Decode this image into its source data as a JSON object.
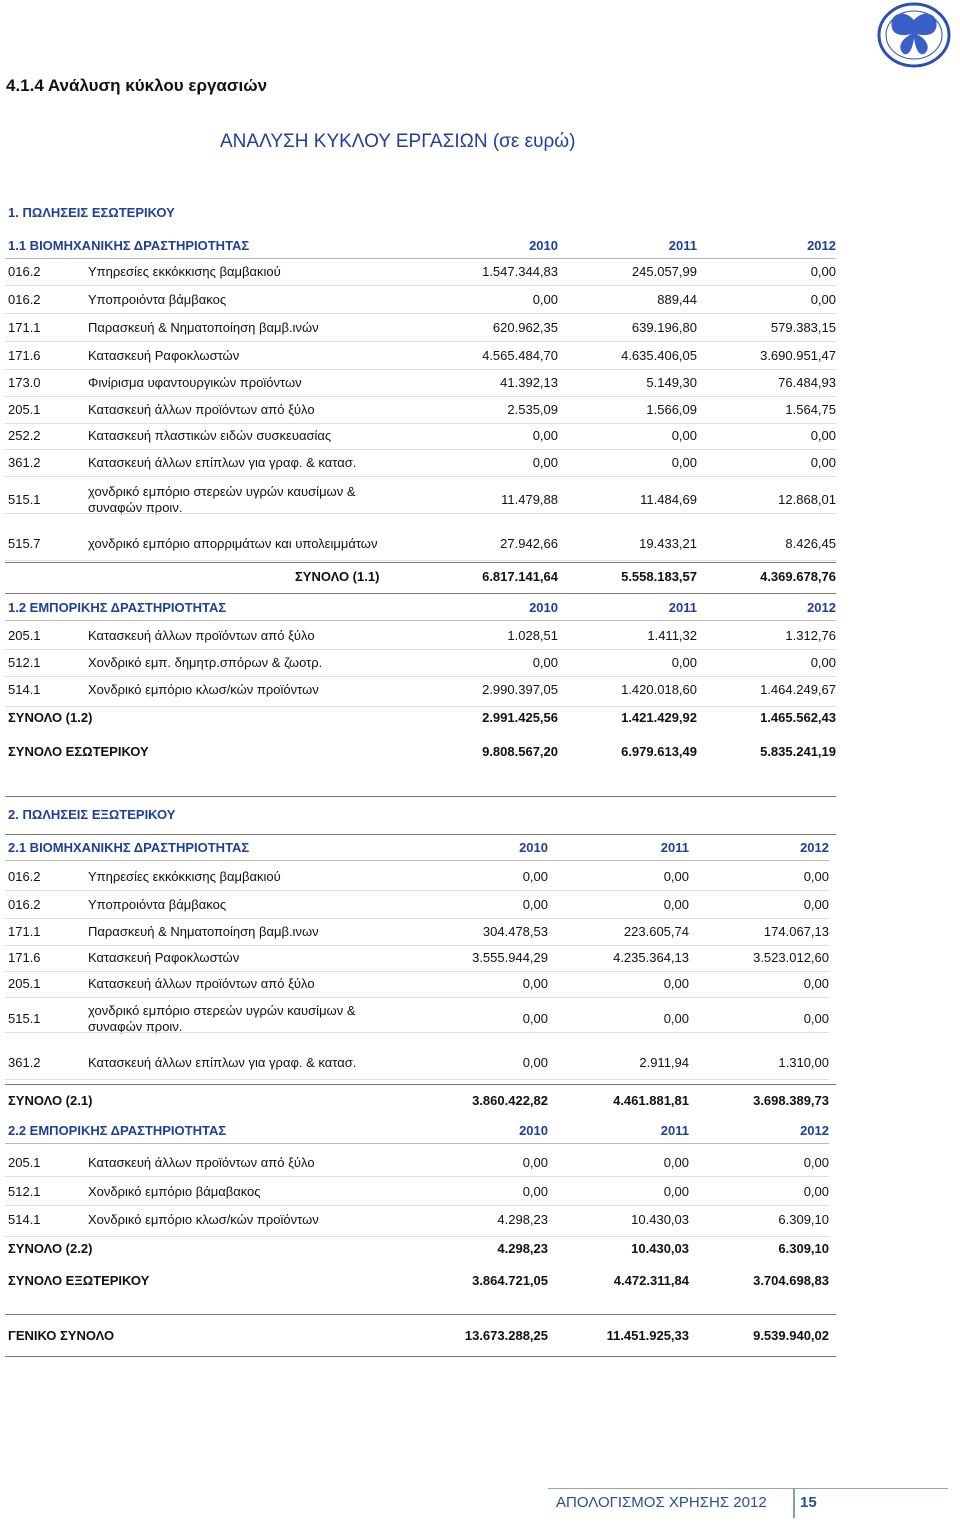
{
  "header": {
    "section": "4.1.4 Ανάλυση κύκλου εργασιών",
    "title": "ΑΝΑΛΥΣΗ ΚΥΚΛΟΥ ΕΡΓΑΣΙΩΝ (σε ευρώ)"
  },
  "domestic": {
    "heading": "1. ΠΩΛΗΣΕΙΣ ΕΣΩΤΕΡΙΚΟΥ",
    "industrial": {
      "heading": "1.1 ΒΙΟΜΗΧΑΝΙΚΗΣ ΔΡΑΣΤΗΡΙΟΤΗΤΑΣ",
      "years": [
        "2010",
        "2011",
        "2012"
      ],
      "rows": [
        {
          "code": "016.2",
          "name": "Υπηρεσίες εκκόκκισης βαμβακιού",
          "values": [
            "1.547.344,83",
            "245.057,99",
            "0,00"
          ]
        },
        {
          "code": "016.2",
          "name": "Υποπροιόντα βάμβακος",
          "values": [
            "0,00",
            "889,44",
            "0,00"
          ]
        },
        {
          "code": "171.1",
          "name": "Παρασκευή & Νηματοποίηση βαμβ.ινών",
          "values": [
            "620.962,35",
            "639.196,80",
            "579.383,15"
          ]
        },
        {
          "code": "171.6",
          "name": "Κατασκευή Ραφοκλωστών",
          "values": [
            "4.565.484,70",
            "4.635.406,05",
            "3.690.951,47"
          ]
        },
        {
          "code": "173.0",
          "name": "Φινίρισμα υφαντουργικών προϊόντων",
          "values": [
            "41.392,13",
            "5.149,30",
            "76.484,93"
          ]
        },
        {
          "code": "205.1",
          "name": "Κατασκευή άλλων προϊόντων από ξύλο",
          "values": [
            "2.535,09",
            "1.566,09",
            "1.564,75"
          ]
        },
        {
          "code": "252.2",
          "name": "Κατασκευή πλαστικών ειδών συσκευασίας",
          "values": [
            "0,00",
            "0,00",
            "0,00"
          ]
        },
        {
          "code": "361.2",
          "name": "Κατασκευή άλλων επίπλων για γραφ. & κατασ.",
          "values": [
            "0,00",
            "0,00",
            "0,00"
          ]
        },
        {
          "code": "515.1",
          "name": "χονδρικό εμπόριο στερεών υγρών καυσίμων & συναφών προιν.",
          "values": [
            "11.479,88",
            "11.484,69",
            "12.868,01"
          ]
        },
        {
          "code": "515.7",
          "name": "χονδρικό εμπόριο απορριμάτων και υπολειμμάτων",
          "values": [
            "27.942,66",
            "19.433,21",
            "8.426,45"
          ]
        }
      ],
      "total": {
        "label": "ΣΥΝΟΛΟ (1.1)",
        "values": [
          "6.817.141,64",
          "5.558.183,57",
          "4.369.678,76"
        ]
      }
    },
    "commercial": {
      "heading": "1.2 ΕΜΠΟΡΙΚΗΣ ΔΡΑΣΤΗΡΙΟΤΗΤΑΣ",
      "years": [
        "2010",
        "2011",
        "2012"
      ],
      "rows": [
        {
          "code": "205.1",
          "name": "Κατασκευή άλλων προϊόντων από ξύλο",
          "values": [
            "1.028,51",
            "1.411,32",
            "1.312,76"
          ]
        },
        {
          "code": "512.1",
          "name": "Χονδρικό εμπ. δημητρ.σπόρων & ζωοτρ.",
          "values": [
            "0,00",
            "0,00",
            "0,00"
          ]
        },
        {
          "code": "514.1",
          "name": "Χονδρικό εμπόριο κλωσ/κών προϊόντων",
          "values": [
            "2.990.397,05",
            "1.420.018,60",
            "1.464.249,67"
          ]
        }
      ],
      "total": {
        "label": "ΣΥΝΟΛΟ (1.2)",
        "values": [
          "2.991.425,56",
          "1.421.429,92",
          "1.465.562,43"
        ]
      }
    },
    "total": {
      "label": "ΣΥΝΟΛΟ ΕΣΩΤΕΡΙΚΟΥ",
      "values": [
        "9.808.567,20",
        "6.979.613,49",
        "5.835.241,19"
      ]
    }
  },
  "foreign": {
    "heading": "2. ΠΩΛΗΣΕΙΣ ΕΞΩΤΕΡΙΚΟΥ",
    "industrial": {
      "heading": "2.1 ΒΙΟΜΗΧΑΝΙΚΗΣ ΔΡΑΣΤΗΡΙΟΤΗΤΑΣ",
      "years": [
        "2010",
        "2011",
        "2012"
      ],
      "rows": [
        {
          "code": "016.2",
          "name": "Υπηρεσίες εκκόκκισης βαμβακιού",
          "values": [
            "0,00",
            "0,00",
            "0,00"
          ]
        },
        {
          "code": "016.2",
          "name": "Υποπροιόντα βάμβακος",
          "values": [
            "0,00",
            "0,00",
            "0,00"
          ]
        },
        {
          "code": "171.1",
          "name": "Παρασκευή & Νηματοποίηση βαμβ.ινων",
          "values": [
            "304.478,53",
            "223.605,74",
            "174.067,13"
          ]
        },
        {
          "code": "171.6",
          "name": "Κατασκευή Ραφοκλωστών",
          "values": [
            "3.555.944,29",
            "4.235.364,13",
            "3.523.012,60"
          ]
        },
        {
          "code": "205.1",
          "name": "Κατασκευή άλλων προϊόντων από ξύλο",
          "values": [
            "0,00",
            "0,00",
            "0,00"
          ]
        },
        {
          "code": "515.1",
          "name": "χονδρικό εμπόριο στερεών υγρών καυσίμων & συναφών προιν.",
          "values": [
            "0,00",
            "0,00",
            "0,00"
          ]
        },
        {
          "code": "361.2",
          "name": "Κατασκευή άλλων επίπλων για γραφ. & κατασ.",
          "values": [
            "0,00",
            "2.911,94",
            "1.310,00"
          ]
        }
      ],
      "total": {
        "label": "ΣΥΝΟΛΟ (2.1)",
        "values": [
          "3.860.422,82",
          "4.461.881,81",
          "3.698.389,73"
        ]
      }
    },
    "commercial": {
      "heading": "2.2 ΕΜΠΟΡΙΚΗΣ ΔΡΑΣΤΗΡΙΟΤΗΤΑΣ",
      "years": [
        "2010",
        "2011",
        "2012"
      ],
      "rows": [
        {
          "code": "205.1",
          "name": "Κατασκευή άλλων προϊόντων από ξύλο",
          "values": [
            "0,00",
            "0,00",
            "0,00"
          ]
        },
        {
          "code": "512.1",
          "name": "Χονδρικό εμπόριο βάμαβακος",
          "values": [
            "0,00",
            "0,00",
            "0,00"
          ]
        },
        {
          "code": "514.1",
          "name": "Χονδρικό εμπόριο κλωσ/κών προϊόντων",
          "values": [
            "4.298,23",
            "10.430,03",
            "6.309,10"
          ]
        }
      ],
      "total": {
        "label": "ΣΥΝΟΛΟ (2.2)",
        "values": [
          "4.298,23",
          "10.430,03",
          "6.309,10"
        ]
      }
    },
    "total": {
      "label": "ΣΥΝΟΛΟ ΕΞΩΤΕΡΙΚΟΥ",
      "values": [
        "3.864.721,05",
        "4.472.311,84",
        "3.704.698,83"
      ]
    }
  },
  "grand_total": {
    "label": "ΓΕΝΙΚΟ ΣΥΝΟΛΟ",
    "values": [
      "13.673.288,25",
      "11.451.925,33",
      "9.539.940,02"
    ]
  },
  "footer": {
    "text": "ΑΠΟΛΟΓΙΣΜΟΣ ΧΡΗΣΗΣ 2012",
    "page": "15"
  }
}
